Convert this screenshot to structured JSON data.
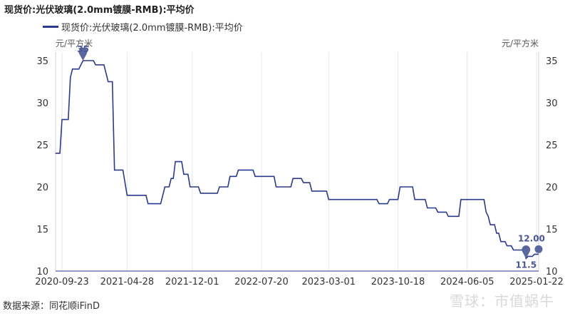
{
  "page_title": "现货价:光伏玻璃(2.0mm镀膜-RMB):平均价",
  "source": "数据来源：同花顺iFinD",
  "watermark": "雪球：市值蜗牛",
  "chart_data": {
    "type": "line",
    "title": "现货价:光伏玻璃(2.0mm镀膜-RMB):平均价",
    "y_unit_left": "元/平方米",
    "y_unit_right": "元/平方米",
    "ylim": [
      10,
      35
    ],
    "yticks": [
      10,
      15,
      20,
      25,
      30,
      35
    ],
    "x_ticks": [
      "2020-09-23",
      "2021-04-28",
      "2021-12-01",
      "2022-07-20",
      "2023-03-01",
      "2023-10-18",
      "2024-06-05",
      "2025-01-22"
    ],
    "grid": "vertical",
    "legend_position": "top-left",
    "series": [
      {
        "name": "现货价:光伏玻璃(2.0mm镀膜-RMB):平均价",
        "color": "#2b3a8c",
        "points": [
          [
            "2020-09-01",
            24.0
          ],
          [
            "2020-09-16",
            24.0
          ],
          [
            "2020-09-23",
            28.0
          ],
          [
            "2020-10-14",
            28.0
          ],
          [
            "2020-10-21",
            33.0
          ],
          [
            "2020-10-28",
            34.0
          ],
          [
            "2020-11-18",
            34.0
          ],
          [
            "2020-12-02",
            35.0
          ],
          [
            "2021-01-06",
            35.0
          ],
          [
            "2021-01-13",
            34.5
          ],
          [
            "2021-02-10",
            34.5
          ],
          [
            "2021-02-24",
            32.5
          ],
          [
            "2021-03-10",
            32.5
          ],
          [
            "2021-03-17",
            22.0
          ],
          [
            "2021-04-14",
            22.0
          ],
          [
            "2021-04-28",
            19.0
          ],
          [
            "2021-06-30",
            19.0
          ],
          [
            "2021-07-07",
            18.0
          ],
          [
            "2021-08-18",
            18.0
          ],
          [
            "2021-09-01",
            20.0
          ],
          [
            "2021-09-15",
            20.0
          ],
          [
            "2021-09-22",
            21.0
          ],
          [
            "2021-09-29",
            21.0
          ],
          [
            "2021-10-06",
            23.0
          ],
          [
            "2021-10-27",
            23.0
          ],
          [
            "2021-11-03",
            21.5
          ],
          [
            "2021-11-17",
            21.5
          ],
          [
            "2021-11-24",
            20.0
          ],
          [
            "2021-12-22",
            20.0
          ],
          [
            "2021-12-29",
            19.25
          ],
          [
            "2022-02-23",
            19.25
          ],
          [
            "2022-03-02",
            20.0
          ],
          [
            "2022-03-30",
            20.0
          ],
          [
            "2022-04-06",
            21.25
          ],
          [
            "2022-04-27",
            21.25
          ],
          [
            "2022-05-04",
            22.0
          ],
          [
            "2022-06-22",
            22.0
          ],
          [
            "2022-06-29",
            21.25
          ],
          [
            "2022-08-31",
            21.25
          ],
          [
            "2022-09-07",
            20.0
          ],
          [
            "2022-10-26",
            20.0
          ],
          [
            "2022-11-02",
            21.0
          ],
          [
            "2022-11-30",
            21.0
          ],
          [
            "2022-12-07",
            20.5
          ],
          [
            "2022-12-28",
            20.5
          ],
          [
            "2023-01-04",
            19.5
          ],
          [
            "2023-02-22",
            19.5
          ],
          [
            "2023-03-01",
            18.5
          ],
          [
            "2023-08-09",
            18.5
          ],
          [
            "2023-08-16",
            18.0
          ],
          [
            "2023-09-13",
            18.0
          ],
          [
            "2023-09-20",
            18.5
          ],
          [
            "2023-10-18",
            18.5
          ],
          [
            "2023-10-25",
            20.0
          ],
          [
            "2023-12-06",
            20.0
          ],
          [
            "2023-12-13",
            18.5
          ],
          [
            "2024-01-17",
            18.5
          ],
          [
            "2024-01-24",
            17.5
          ],
          [
            "2024-02-21",
            17.5
          ],
          [
            "2024-02-28",
            17.0
          ],
          [
            "2024-03-27",
            17.0
          ],
          [
            "2024-04-03",
            16.5
          ],
          [
            "2024-05-08",
            16.5
          ],
          [
            "2024-05-15",
            18.5
          ],
          [
            "2024-07-31",
            18.5
          ],
          [
            "2024-08-07",
            17.0
          ],
          [
            "2024-08-14",
            16.5
          ],
          [
            "2024-08-21",
            15.5
          ],
          [
            "2024-09-04",
            15.5
          ],
          [
            "2024-09-11",
            14.5
          ],
          [
            "2024-09-18",
            14.5
          ],
          [
            "2024-09-25",
            13.5
          ],
          [
            "2024-10-09",
            13.5
          ],
          [
            "2024-10-16",
            13.0
          ],
          [
            "2024-10-30",
            13.0
          ],
          [
            "2024-11-06",
            12.5
          ],
          [
            "2024-12-11",
            12.5
          ],
          [
            "2024-12-18",
            11.5
          ],
          [
            "2024-12-25",
            11.75
          ],
          [
            "2025-01-08",
            11.75
          ],
          [
            "2025-01-15",
            12.0
          ],
          [
            "2025-01-29",
            12.0
          ]
        ]
      }
    ],
    "annotations": [
      {
        "label": "35",
        "x": "2020-12-02",
        "y": 35.0,
        "type": "max"
      },
      {
        "label": "11.5",
        "x": "2024-12-18",
        "y": 11.5,
        "type": "min"
      },
      {
        "label": "12.00",
        "x": "2025-01-29",
        "y": 12.0,
        "type": "last"
      }
    ]
  }
}
